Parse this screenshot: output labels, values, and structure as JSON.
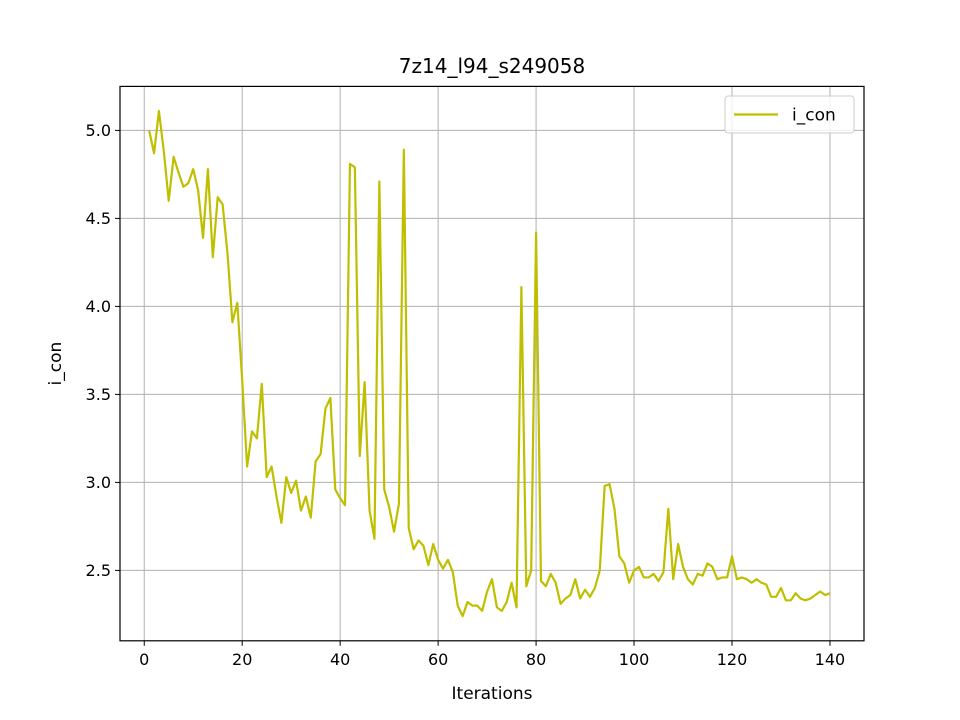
{
  "chart_data": {
    "type": "line",
    "title": "7z14_l94_s249058",
    "xlabel": "Iterations",
    "ylabel": "i_con",
    "xlim": [
      -4.95,
      146.95
    ],
    "ylim": [
      2.1,
      5.25
    ],
    "xticks": [
      0,
      20,
      40,
      60,
      80,
      100,
      120,
      140
    ],
    "xtick_labels": [
      "0",
      "20",
      "40",
      "60",
      "80",
      "100",
      "120",
      "140"
    ],
    "yticks": [
      2.5,
      3.0,
      3.5,
      4.0,
      4.5,
      5.0
    ],
    "ytick_labels": [
      "2.5",
      "3.0",
      "3.5",
      "4.0",
      "4.5",
      "5.0"
    ],
    "grid": true,
    "legend_position": "top-right",
    "series": [
      {
        "name": "i_con",
        "color": "#bfbf00",
        "x": [
          1,
          2,
          3,
          4,
          5,
          6,
          7,
          8,
          9,
          10,
          11,
          12,
          13,
          14,
          15,
          16,
          17,
          18,
          19,
          20,
          21,
          22,
          23,
          24,
          25,
          26,
          27,
          28,
          29,
          30,
          31,
          32,
          33,
          34,
          35,
          36,
          37,
          38,
          39,
          40,
          41,
          42,
          43,
          44,
          45,
          46,
          47,
          48,
          49,
          50,
          51,
          52,
          53,
          54,
          55,
          56,
          57,
          58,
          59,
          60,
          61,
          62,
          63,
          64,
          65,
          66,
          67,
          68,
          69,
          70,
          71,
          72,
          73,
          74,
          75,
          76,
          77,
          78,
          79,
          80,
          81,
          82,
          83,
          84,
          85,
          86,
          87,
          88,
          89,
          90,
          91,
          92,
          93,
          94,
          95,
          96,
          97,
          98,
          99,
          100,
          101,
          102,
          103,
          104,
          105,
          106,
          107,
          108,
          109,
          110,
          111,
          112,
          113,
          114,
          115,
          116,
          117,
          118,
          119,
          120,
          121,
          122,
          123,
          124,
          125,
          126,
          127,
          128,
          129,
          130,
          131,
          132,
          133,
          134,
          135,
          136,
          137,
          138,
          139,
          140
        ],
        "y": [
          5.0,
          4.87,
          5.11,
          4.88,
          4.6,
          4.85,
          4.76,
          4.68,
          4.7,
          4.78,
          4.66,
          4.39,
          4.78,
          4.28,
          4.62,
          4.58,
          4.3,
          3.91,
          4.02,
          3.58,
          3.09,
          3.29,
          3.25,
          3.56,
          3.03,
          3.09,
          2.92,
          2.77,
          3.03,
          2.94,
          3.01,
          2.84,
          2.92,
          2.8,
          3.12,
          3.16,
          3.42,
          3.48,
          2.96,
          2.91,
          2.87,
          4.81,
          4.79,
          3.15,
          3.57,
          2.84,
          2.68,
          4.71,
          2.96,
          2.86,
          2.72,
          2.88,
          4.89,
          2.74,
          2.62,
          2.67,
          2.64,
          2.53,
          2.65,
          2.56,
          2.51,
          2.56,
          2.49,
          2.3,
          2.24,
          2.32,
          2.3,
          2.3,
          2.27,
          2.38,
          2.45,
          2.29,
          2.27,
          2.32,
          2.43,
          2.29,
          4.11,
          2.41,
          2.5,
          4.42,
          2.44,
          2.41,
          2.48,
          2.43,
          2.31,
          2.34,
          2.36,
          2.45,
          2.34,
          2.39,
          2.35,
          2.4,
          2.5,
          2.98,
          2.99,
          2.85,
          2.58,
          2.54,
          2.43,
          2.5,
          2.52,
          2.46,
          2.46,
          2.48,
          2.44,
          2.49,
          2.85,
          2.45,
          2.65,
          2.52,
          2.45,
          2.42,
          2.48,
          2.47,
          2.54,
          2.52,
          2.45,
          2.46,
          2.46,
          2.58,
          2.45,
          2.46,
          2.45,
          2.43,
          2.45,
          2.43,
          2.42,
          2.35,
          2.35,
          2.4,
          2.33,
          2.33,
          2.37,
          2.34,
          2.33,
          2.34,
          2.36,
          2.38,
          2.36,
          2.37
        ]
      }
    ]
  }
}
